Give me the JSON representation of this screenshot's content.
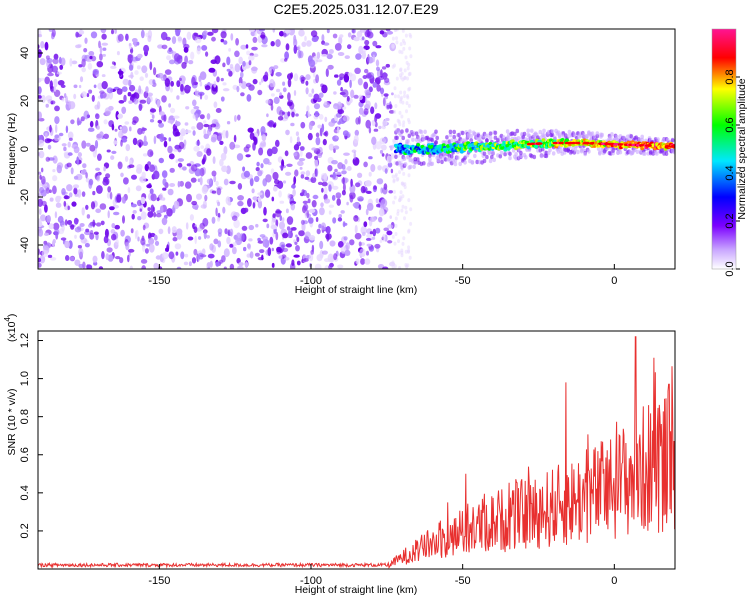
{
  "chart_data": [
    {
      "type": "heatmap",
      "title": "C2E5.2025.031.12.07.E29",
      "xlabel": "Height of straight line (km)",
      "ylabel": "Frequency (Hz)",
      "xlim": [
        -190,
        20
      ],
      "ylim": [
        -50,
        50
      ],
      "xticks": [
        -150,
        -100,
        -50,
        0
      ],
      "yticks": [
        -40,
        -20,
        0,
        20,
        40
      ],
      "noise_region_x": [
        -190,
        -73
      ],
      "signal_track": [
        {
          "x": -72,
          "y": 0
        },
        {
          "x": -60,
          "y": 0
        },
        {
          "x": -50,
          "y": 0.5
        },
        {
          "x": -40,
          "y": 1
        },
        {
          "x": -30,
          "y": 2
        },
        {
          "x": -20,
          "y": 2.5
        },
        {
          "x": -10,
          "y": 2.5
        },
        {
          "x": 0,
          "y": 2
        },
        {
          "x": 10,
          "y": 1.5
        },
        {
          "x": 20,
          "y": 1
        }
      ],
      "colorbar": {
        "label": "Normalized spectral amplitude",
        "range": [
          0,
          1
        ],
        "ticks": [
          0.0,
          0.2,
          0.4,
          0.6,
          0.8
        ],
        "colors": [
          "#ffffff",
          "#8a2be2",
          "#0000ff",
          "#00e5ff",
          "#00ff00",
          "#ffff00",
          "#ff0000",
          "#ff1493"
        ]
      },
      "grid": false
    },
    {
      "type": "line",
      "xlabel": "Height of straight line (km)",
      "ylabel": "SNR (10 * v/v)",
      "yscale_note": "(x10",
      "yscale_exp": "4",
      "xlim": [
        -190,
        20
      ],
      "ylim": [
        0,
        1.25
      ],
      "xticks": [
        -150,
        -100,
        -50,
        0
      ],
      "yticks": [
        0.2,
        0.4,
        0.6,
        0.8,
        1.0,
        1.2
      ],
      "color": "#e8302f",
      "envelope": [
        {
          "x": -190,
          "y": 0.02
        },
        {
          "x": -75,
          "y": 0.02
        },
        {
          "x": -70,
          "y": 0.08
        },
        {
          "x": -60,
          "y": 0.18
        },
        {
          "x": -50,
          "y": 0.25
        },
        {
          "x": -40,
          "y": 0.33
        },
        {
          "x": -30,
          "y": 0.38
        },
        {
          "x": -20,
          "y": 0.43
        },
        {
          "x": -10,
          "y": 0.5
        },
        {
          "x": 0,
          "y": 0.58
        },
        {
          "x": 10,
          "y": 0.7
        },
        {
          "x": 20,
          "y": 0.78
        }
      ],
      "peaks": [
        {
          "x": -55,
          "y": 0.35
        },
        {
          "x": -49,
          "y": 0.5
        },
        {
          "x": -16,
          "y": 0.98
        },
        {
          "x": 7,
          "y": 1.22
        },
        {
          "x": 13,
          "y": 1.11
        },
        {
          "x": 18,
          "y": 0.97
        }
      ],
      "grid": false
    }
  ]
}
